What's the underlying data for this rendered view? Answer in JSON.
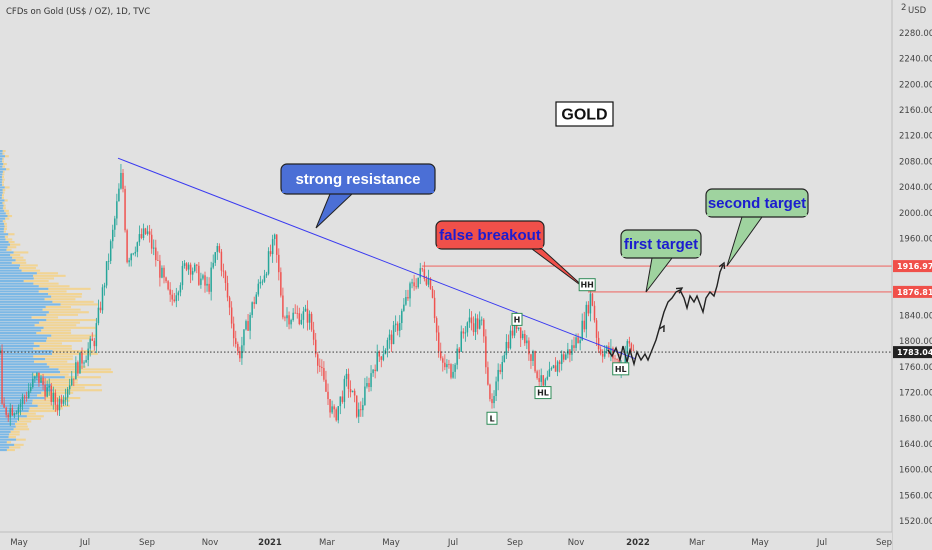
{
  "chart_data": {
    "type": "candlestick",
    "title": "CFDs on Gold (US$ / OZ), 1D, TVC",
    "currency_label": "USD",
    "corner_label": "2",
    "symbol_label": "GOLD",
    "ylim": [
      1500,
      2320
    ],
    "y_ticks": [
      1520,
      1560,
      1600,
      1640,
      1680,
      1720,
      1760,
      1800,
      1840,
      1880,
      1920,
      1960,
      2000,
      2040,
      2080,
      2120,
      2160,
      2200,
      2240,
      2280
    ],
    "x_ticks": [
      "May",
      "Jul",
      "Sep",
      "Nov",
      "2021",
      "Mar",
      "May",
      "Jul",
      "Sep",
      "Nov",
      "2022",
      "Mar",
      "May",
      "Jul",
      "Sep"
    ],
    "price_levels": [
      {
        "label": "1916.97",
        "value": 1916.97,
        "color": "#f0504a"
      },
      {
        "label": "1876.81",
        "value": 1876.81,
        "color": "#f0504a"
      },
      {
        "label": "1783.04",
        "value": 1783.04,
        "color": "#222222"
      }
    ],
    "trendline": {
      "from": {
        "x": "2020-08-03",
        "y": 2085
      },
      "to": {
        "x": "2021-12-29",
        "y": 1773
      },
      "color": "#3a3af0"
    },
    "annotations": [
      {
        "text": "strong resistance",
        "fill": "#4b6fd6",
        "text_color": "#ffffff"
      },
      {
        "text": "false breakout",
        "fill": "#f0504a",
        "text_color": "#1c1cd0"
      },
      {
        "text": "first target",
        "fill": "#9fd39f",
        "text_color": "#1c1cd0"
      },
      {
        "text": "second target",
        "fill": "#9fd39f",
        "text_color": "#1c1cd0"
      }
    ],
    "swing_labels": [
      {
        "text": "HH",
        "x": "2021-11-12",
        "y": 1888
      },
      {
        "text": "H",
        "x": "2021-09-03",
        "y": 1834
      },
      {
        "text": "HL",
        "x": "2021-12-15",
        "y": 1757
      },
      {
        "text": "HL",
        "x": "2021-09-29",
        "y": 1720
      },
      {
        "text": "L",
        "x": "2021-08-09",
        "y": 1680
      }
    ],
    "price_path": [
      {
        "x": "2020-04-15",
        "y": 1690
      },
      {
        "x": "2020-05-01",
        "y": 1700
      },
      {
        "x": "2020-05-18",
        "y": 1745
      },
      {
        "x": "2020-06-05",
        "y": 1700
      },
      {
        "x": "2020-06-25",
        "y": 1765
      },
      {
        "x": "2020-07-10",
        "y": 1800
      },
      {
        "x": "2020-07-28",
        "y": 1960
      },
      {
        "x": "2020-08-07",
        "y": 2065
      },
      {
        "x": "2020-08-12",
        "y": 1930
      },
      {
        "x": "2020-08-20",
        "y": 1950
      },
      {
        "x": "2020-09-01",
        "y": 1970
      },
      {
        "x": "2020-09-24",
        "y": 1860
      },
      {
        "x": "2020-10-10",
        "y": 1925
      },
      {
        "x": "2020-10-30",
        "y": 1880
      },
      {
        "x": "2020-11-09",
        "y": 1950
      },
      {
        "x": "2020-11-30",
        "y": 1775
      },
      {
        "x": "2020-12-15",
        "y": 1860
      },
      {
        "x": "2021-01-06",
        "y": 1955
      },
      {
        "x": "2021-01-15",
        "y": 1840
      },
      {
        "x": "2021-02-10",
        "y": 1840
      },
      {
        "x": "2021-02-26",
        "y": 1730
      },
      {
        "x": "2021-03-08",
        "y": 1680
      },
      {
        "x": "2021-03-20",
        "y": 1740
      },
      {
        "x": "2021-03-31",
        "y": 1685
      },
      {
        "x": "2021-04-15",
        "y": 1765
      },
      {
        "x": "2021-05-05",
        "y": 1815
      },
      {
        "x": "2021-05-20",
        "y": 1880
      },
      {
        "x": "2021-06-01",
        "y": 1910
      },
      {
        "x": "2021-06-10",
        "y": 1890
      },
      {
        "x": "2021-06-18",
        "y": 1765
      },
      {
        "x": "2021-06-29",
        "y": 1755
      },
      {
        "x": "2021-07-15",
        "y": 1830
      },
      {
        "x": "2021-07-30",
        "y": 1825
      },
      {
        "x": "2021-08-09",
        "y": 1690
      },
      {
        "x": "2021-08-20",
        "y": 1785
      },
      {
        "x": "2021-09-03",
        "y": 1830
      },
      {
        "x": "2021-09-15",
        "y": 1790
      },
      {
        "x": "2021-09-29",
        "y": 1725
      },
      {
        "x": "2021-10-15",
        "y": 1770
      },
      {
        "x": "2021-10-29",
        "y": 1790
      },
      {
        "x": "2021-11-08",
        "y": 1825
      },
      {
        "x": "2021-11-16",
        "y": 1875
      },
      {
        "x": "2021-11-23",
        "y": 1790
      },
      {
        "x": "2021-12-06",
        "y": 1780
      },
      {
        "x": "2021-12-15",
        "y": 1760
      },
      {
        "x": "2021-12-22",
        "y": 1795
      },
      {
        "x": "2021-12-29",
        "y": 1783
      }
    ]
  }
}
